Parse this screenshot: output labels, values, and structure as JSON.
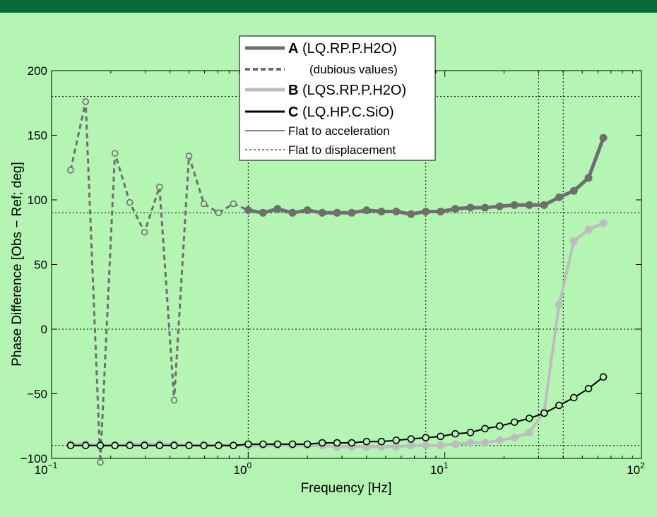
{
  "chart_data": {
    "type": "line",
    "title": "",
    "xlabel": "Frequency [Hz]",
    "ylabel": "Phase Difference [Obs − Ref; deg]",
    "xscale": "log",
    "xlim": [
      0.1,
      100
    ],
    "ylim": [
      -100,
      200
    ],
    "yticks": [
      -100,
      -50,
      0,
      50,
      100,
      150,
      200
    ],
    "xtick_labels": [
      {
        "base": "10",
        "exp": "−1"
      },
      {
        "base": "10",
        "exp": "0"
      },
      {
        "base": "10",
        "exp": "1"
      },
      {
        "base": "10",
        "exp": "2"
      }
    ],
    "ytick_labels": [
      "−100",
      "−50",
      "0",
      "50",
      "100",
      "150",
      "200"
    ],
    "reference_lines": {
      "horizontal": [
        180,
        90,
        0,
        -90
      ],
      "vertical": [
        1,
        8,
        30,
        40
      ]
    },
    "legend_position": "top-center",
    "legend": [
      {
        "bold": "A",
        "rest": " (LQ.RP.P.H2O)",
        "style": "thick-gray"
      },
      {
        "bold": "",
        "rest": "(dubious values)",
        "style": "dashed-gray"
      },
      {
        "bold": "B",
        "rest": " (LQS.RP.P.H2O)",
        "style": "thick-lightgray"
      },
      {
        "bold": "C",
        "rest": " (LQ.HP.C.SiO)",
        "style": "thick-black"
      },
      {
        "bold": "",
        "rest": "Flat to acceleration",
        "style": "thin-solid"
      },
      {
        "bold": "",
        "rest": "Flat to displacement",
        "style": "thin-dashed"
      }
    ],
    "series": [
      {
        "name": "A (LQ.RP.P.H2O)",
        "color": "#6e6e6e",
        "x": [
          1.0,
          1.19,
          1.41,
          1.68,
          2.0,
          2.38,
          2.83,
          3.36,
          4.0,
          4.76,
          5.66,
          6.73,
          8.0,
          9.51,
          11.3,
          13.5,
          16.0,
          19.0,
          22.6,
          26.9,
          32.0,
          38.1,
          45.3,
          53.8,
          64.0
        ],
        "y": [
          92,
          90,
          93,
          90,
          92,
          90,
          90,
          90,
          92,
          91,
          91,
          89,
          91,
          91,
          93,
          94,
          94,
          95,
          96,
          96,
          96,
          102,
          107,
          117,
          148
        ]
      },
      {
        "name": "(dubious values)",
        "color": "#6e6e6e",
        "x": [
          0.125,
          0.149,
          0.177,
          0.21,
          0.25,
          0.297,
          0.354,
          0.42,
          0.5,
          0.595,
          0.707,
          0.841,
          1.0
        ],
        "y": [
          123,
          176,
          -103,
          136,
          98,
          75,
          110,
          -55,
          134,
          97,
          90,
          97,
          92
        ]
      },
      {
        "name": "B (LQS.RP.P.H2O)",
        "color": "#bdbdbd",
        "x": [
          0.125,
          0.149,
          0.177,
          0.21,
          0.25,
          0.297,
          0.354,
          0.42,
          0.5,
          0.595,
          0.707,
          0.841,
          1.0,
          1.19,
          1.41,
          1.68,
          2.0,
          2.38,
          2.83,
          3.36,
          4.0,
          4.76,
          5.66,
          6.73,
          8.0,
          9.51,
          11.3,
          13.5,
          16.0,
          19.0,
          22.6,
          26.9,
          32.0,
          38.1,
          45.3,
          53.8,
          64.0
        ],
        "y": [
          -89,
          -89,
          -90,
          -90,
          -89,
          -89,
          -89,
          -89,
          -90,
          -90,
          -90,
          -90,
          -90,
          -90,
          -90,
          -90,
          -90,
          -90,
          -91,
          -91,
          -91,
          -91,
          -91,
          -90,
          -90,
          -90,
          -89,
          -88,
          -88,
          -86,
          -84,
          -80,
          -64,
          19,
          68,
          77,
          82
        ]
      },
      {
        "name": "C (LQ.HP.C.SiO)",
        "color": "#000000",
        "x": [
          0.125,
          0.149,
          0.177,
          0.21,
          0.25,
          0.297,
          0.354,
          0.42,
          0.5,
          0.595,
          0.707,
          0.841,
          1.0,
          1.19,
          1.41,
          1.68,
          2.0,
          2.38,
          2.83,
          3.36,
          4.0,
          4.76,
          5.66,
          6.73,
          8.0,
          9.51,
          11.3,
          13.5,
          16.0,
          19.0,
          22.6,
          26.9,
          32.0,
          38.1,
          45.3,
          53.8,
          64.0
        ],
        "y": [
          -90,
          -90,
          -90,
          -90,
          -90,
          -90,
          -90,
          -90,
          -90,
          -90,
          -90,
          -90,
          -89,
          -89,
          -89,
          -89,
          -89,
          -88,
          -88,
          -88,
          -87,
          -87,
          -86,
          -85,
          -84,
          -83,
          -81,
          -80,
          -77,
          -75,
          -72,
          -69,
          -65,
          -59,
          -53,
          -46,
          -37
        ]
      }
    ]
  }
}
